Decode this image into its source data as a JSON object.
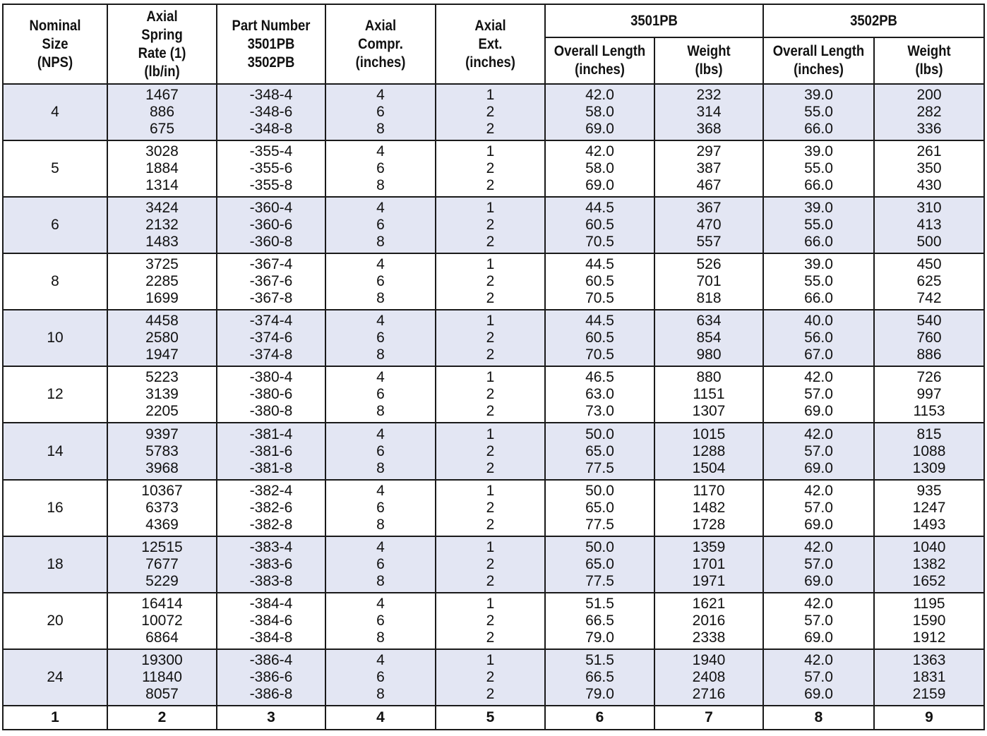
{
  "headers": {
    "nominal_size": [
      "Nominal",
      "Size",
      "(NPS)"
    ],
    "spring_rate": [
      "Axial",
      "Spring",
      "Rate (1)",
      "(lb/in)"
    ],
    "part_number": [
      "Part Number",
      "3501PB",
      "3502PB"
    ],
    "axial_compr": [
      "Axial",
      "Compr.",
      "(inches)"
    ],
    "axial_ext": [
      "Axial",
      "Ext.",
      "(inches)"
    ],
    "group_3501": "3501PB",
    "group_3502": "3502PB",
    "overall_length": [
      "Overall Length",
      "(inches)"
    ],
    "weight": [
      "Weight",
      "(lbs)"
    ]
  },
  "rows": [
    {
      "size": "4",
      "rate": [
        "1467",
        "886",
        "675"
      ],
      "part": [
        "-348-4",
        "-348-6",
        "-348-8"
      ],
      "compr": [
        "4",
        "6",
        "8"
      ],
      "ext": [
        "1",
        "2",
        "2"
      ],
      "len1": [
        "42.0",
        "58.0",
        "69.0"
      ],
      "wt1": [
        "232",
        "314",
        "368"
      ],
      "len2": [
        "39.0",
        "55.0",
        "66.0"
      ],
      "wt2": [
        "200",
        "282",
        "336"
      ]
    },
    {
      "size": "5",
      "rate": [
        "3028",
        "1884",
        "1314"
      ],
      "part": [
        "-355-4",
        "-355-6",
        "-355-8"
      ],
      "compr": [
        "4",
        "6",
        "8"
      ],
      "ext": [
        "1",
        "2",
        "2"
      ],
      "len1": [
        "42.0",
        "58.0",
        "69.0"
      ],
      "wt1": [
        "297",
        "387",
        "467"
      ],
      "len2": [
        "39.0",
        "55.0",
        "66.0"
      ],
      "wt2": [
        "261",
        "350",
        "430"
      ]
    },
    {
      "size": "6",
      "rate": [
        "3424",
        "2132",
        "1483"
      ],
      "part": [
        "-360-4",
        "-360-6",
        "-360-8"
      ],
      "compr": [
        "4",
        "6",
        "8"
      ],
      "ext": [
        "1",
        "2",
        "2"
      ],
      "len1": [
        "44.5",
        "60.5",
        "70.5"
      ],
      "wt1": [
        "367",
        "470",
        "557"
      ],
      "len2": [
        "39.0",
        "55.0",
        "66.0"
      ],
      "wt2": [
        "310",
        "413",
        "500"
      ]
    },
    {
      "size": "8",
      "rate": [
        "3725",
        "2285",
        "1699"
      ],
      "part": [
        "-367-4",
        "-367-6",
        "-367-8"
      ],
      "compr": [
        "4",
        "6",
        "8"
      ],
      "ext": [
        "1",
        "2",
        "2"
      ],
      "len1": [
        "44.5",
        "60.5",
        "70.5"
      ],
      "wt1": [
        "526",
        "701",
        "818"
      ],
      "len2": [
        "39.0",
        "55.0",
        "66.0"
      ],
      "wt2": [
        "450",
        "625",
        "742"
      ]
    },
    {
      "size": "10",
      "rate": [
        "4458",
        "2580",
        "1947"
      ],
      "part": [
        "-374-4",
        "-374-6",
        "-374-8"
      ],
      "compr": [
        "4",
        "6",
        "8"
      ],
      "ext": [
        "1",
        "2",
        "2"
      ],
      "len1": [
        "44.5",
        "60.5",
        "70.5"
      ],
      "wt1": [
        "634",
        "854",
        "980"
      ],
      "len2": [
        "40.0",
        "56.0",
        "67.0"
      ],
      "wt2": [
        "540",
        "760",
        "886"
      ]
    },
    {
      "size": "12",
      "rate": [
        "5223",
        "3139",
        "2205"
      ],
      "part": [
        "-380-4",
        "-380-6",
        "-380-8"
      ],
      "compr": [
        "4",
        "6",
        "8"
      ],
      "ext": [
        "1",
        "2",
        "2"
      ],
      "len1": [
        "46.5",
        "63.0",
        "73.0"
      ],
      "wt1": [
        "880",
        "1151",
        "1307"
      ],
      "len2": [
        "42.0",
        "57.0",
        "69.0"
      ],
      "wt2": [
        "726",
        "997",
        "1153"
      ]
    },
    {
      "size": "14",
      "rate": [
        "9397",
        "5783",
        "3968"
      ],
      "part": [
        "-381-4",
        "-381-6",
        "-381-8"
      ],
      "compr": [
        "4",
        "6",
        "8"
      ],
      "ext": [
        "1",
        "2",
        "2"
      ],
      "len1": [
        "50.0",
        "65.0",
        "77.5"
      ],
      "wt1": [
        "1015",
        "1288",
        "1504"
      ],
      "len2": [
        "42.0",
        "57.0",
        "69.0"
      ],
      "wt2": [
        "815",
        "1088",
        "1309"
      ]
    },
    {
      "size": "16",
      "rate": [
        "10367",
        "6373",
        "4369"
      ],
      "part": [
        "-382-4",
        "-382-6",
        "-382-8"
      ],
      "compr": [
        "4",
        "6",
        "8"
      ],
      "ext": [
        "1",
        "2",
        "2"
      ],
      "len1": [
        "50.0",
        "65.0",
        "77.5"
      ],
      "wt1": [
        "1170",
        "1482",
        "1728"
      ],
      "len2": [
        "42.0",
        "57.0",
        "69.0"
      ],
      "wt2": [
        "935",
        "1247",
        "1493"
      ]
    },
    {
      "size": "18",
      "rate": [
        "12515",
        "7677",
        "5229"
      ],
      "part": [
        "-383-4",
        "-383-6",
        "-383-8"
      ],
      "compr": [
        "4",
        "6",
        "8"
      ],
      "ext": [
        "1",
        "2",
        "2"
      ],
      "len1": [
        "50.0",
        "65.0",
        "77.5"
      ],
      "wt1": [
        "1359",
        "1701",
        "1971"
      ],
      "len2": [
        "42.0",
        "57.0",
        "69.0"
      ],
      "wt2": [
        "1040",
        "1382",
        "1652"
      ]
    },
    {
      "size": "20",
      "rate": [
        "16414",
        "10072",
        "6864"
      ],
      "part": [
        "-384-4",
        "-384-6",
        "-384-8"
      ],
      "compr": [
        "4",
        "6",
        "8"
      ],
      "ext": [
        "1",
        "2",
        "2"
      ],
      "len1": [
        "51.5",
        "66.5",
        "79.0"
      ],
      "wt1": [
        "1621",
        "2016",
        "2338"
      ],
      "len2": [
        "42.0",
        "57.0",
        "69.0"
      ],
      "wt2": [
        "1195",
        "1590",
        "1912"
      ]
    },
    {
      "size": "24",
      "rate": [
        "19300",
        "11840",
        "8057"
      ],
      "part": [
        "-386-4",
        "-386-6",
        "-386-8"
      ],
      "compr": [
        "4",
        "6",
        "8"
      ],
      "ext": [
        "1",
        "2",
        "2"
      ],
      "len1": [
        "51.5",
        "66.5",
        "79.0"
      ],
      "wt1": [
        "1940",
        "2408",
        "2716"
      ],
      "len2": [
        "42.0",
        "57.0",
        "69.0"
      ],
      "wt2": [
        "1363",
        "1831",
        "2159"
      ]
    }
  ],
  "column_numbers": [
    "1",
    "2",
    "3",
    "4",
    "5",
    "6",
    "7",
    "8",
    "9"
  ],
  "colors": {
    "shade": "#e3e6f3",
    "border": "#1a1a1a"
  }
}
